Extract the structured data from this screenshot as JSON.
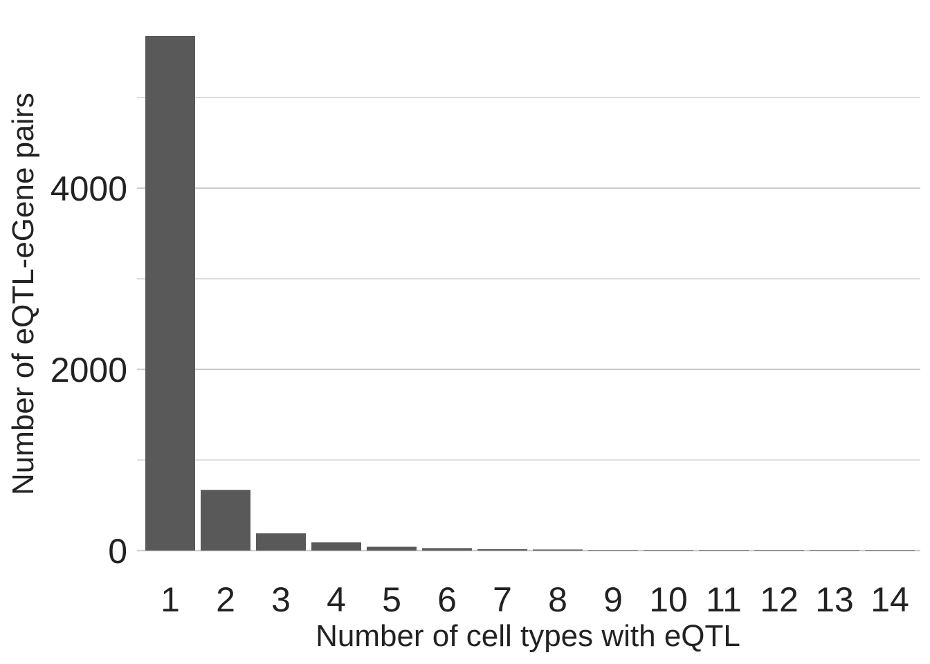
{
  "chart_data": {
    "type": "bar",
    "title": "",
    "xlabel": "Number of cell types with eQTL",
    "ylabel": "Number of eQTL-eGene pairs",
    "categories": [
      "1",
      "2",
      "3",
      "4",
      "5",
      "6",
      "7",
      "8",
      "9",
      "10",
      "11",
      "12",
      "13",
      "14"
    ],
    "values": [
      5680,
      670,
      190,
      90,
      42,
      27,
      15,
      12,
      5,
      4,
      2,
      3,
      3,
      3
    ],
    "ylim": [
      0,
      5680
    ],
    "yticks": [
      0,
      2000,
      4000
    ],
    "grid": true,
    "legend": "none",
    "colors": {
      "bar": "#595959",
      "grid": "#cccccc",
      "text": "#222222",
      "background": "#ffffff"
    }
  }
}
